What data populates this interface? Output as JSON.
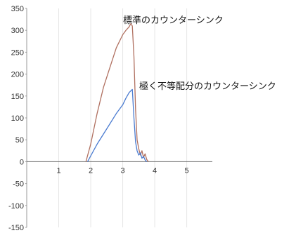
{
  "chart_data": {
    "type": "line",
    "title": "",
    "xlabel": "",
    "ylabel": "",
    "xlim": [
      0,
      5.8
    ],
    "ylim": [
      -150,
      350
    ],
    "x_ticks": [
      "1",
      "2",
      "3",
      "4",
      "5"
    ],
    "x_tick_values": [
      1,
      2,
      3,
      4,
      5
    ],
    "y_ticks": [
      "350",
      "300",
      "250",
      "200",
      "150",
      "100",
      "50",
      "0",
      "-50",
      "-100",
      "-150"
    ],
    "y_tick_values": [
      350,
      300,
      250,
      200,
      150,
      100,
      50,
      0,
      -50,
      -100,
      -150
    ],
    "grid": "vertical",
    "legend": "none",
    "annotations": [
      {
        "text": "標準のカウンターシンク",
        "series": 0
      },
      {
        "text": "極く不等配分のカウンターシンク",
        "series": 1
      }
    ],
    "series": [
      {
        "color": "#b07060",
        "x": [
          1.85,
          2.0,
          2.2,
          2.4,
          2.6,
          2.8,
          3.0,
          3.1,
          3.2,
          3.25,
          3.3,
          3.35,
          3.4,
          3.45,
          3.5,
          3.55,
          3.6,
          3.65,
          3.7,
          3.75,
          3.8
        ],
        "y": [
          0,
          40,
          110,
          170,
          215,
          260,
          290,
          300,
          308,
          315,
          310,
          240,
          120,
          50,
          30,
          15,
          25,
          10,
          18,
          5,
          0
        ]
      },
      {
        "color": "#4a7bd0",
        "x": [
          1.9,
          2.2,
          2.5,
          2.8,
          3.0,
          3.1,
          3.2,
          3.3,
          3.35,
          3.4,
          3.45,
          3.5,
          3.55,
          3.6,
          3.65,
          3.7,
          3.75
        ],
        "y": [
          0,
          40,
          75,
          110,
          130,
          145,
          158,
          165,
          100,
          45,
          25,
          15,
          20,
          8,
          12,
          4,
          0
        ]
      }
    ]
  }
}
